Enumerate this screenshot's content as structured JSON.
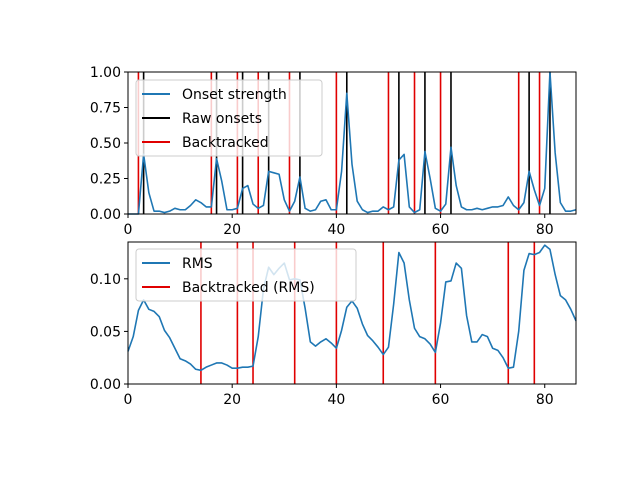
{
  "colors": {
    "series": "#1f77b4",
    "raw": "#000000",
    "backtracked": "#e00000",
    "axis": "#000000"
  },
  "chart_data": [
    {
      "type": "line",
      "xlim": [
        0,
        86
      ],
      "ylim": [
        0,
        1.0
      ],
      "xticks": [
        0,
        20,
        40,
        60,
        80
      ],
      "xtick_labels": [
        "0",
        "20",
        "40",
        "60",
        "80"
      ],
      "yticks": [
        0,
        0.25,
        0.5,
        0.75,
        1.0
      ],
      "ytick_labels": [
        "0.00",
        "0.25",
        "0.50",
        "0.75",
        "1.00"
      ],
      "legend": {
        "position": "upper-left",
        "entries": [
          "Onset strength",
          "Raw onsets",
          "Backtracked"
        ]
      },
      "series": [
        {
          "name": "Onset strength",
          "x_start": 0,
          "values": [
            0.0,
            0.0,
            0.0,
            0.42,
            0.15,
            0.02,
            0.02,
            0.01,
            0.02,
            0.04,
            0.03,
            0.03,
            0.06,
            0.1,
            0.08,
            0.05,
            0.05,
            0.39,
            0.23,
            0.03,
            0.03,
            0.04,
            0.18,
            0.2,
            0.07,
            0.04,
            0.06,
            0.3,
            0.29,
            0.28,
            0.1,
            0.02,
            0.09,
            0.26,
            0.04,
            0.02,
            0.03,
            0.09,
            0.1,
            0.03,
            0.03,
            0.3,
            0.85,
            0.35,
            0.09,
            0.03,
            0.01,
            0.02,
            0.02,
            0.05,
            0.03,
            0.05,
            0.38,
            0.42,
            0.05,
            0.01,
            0.03,
            0.44,
            0.25,
            0.04,
            0.02,
            0.07,
            0.47,
            0.2,
            0.05,
            0.03,
            0.03,
            0.04,
            0.03,
            0.04,
            0.05,
            0.05,
            0.06,
            0.12,
            0.06,
            0.03,
            0.08,
            0.3,
            0.17,
            0.06,
            0.18,
            1.0,
            0.43,
            0.08,
            0.02,
            0.02,
            0.03
          ]
        }
      ],
      "raw_onsets": [
        3,
        17,
        22,
        27,
        33,
        42,
        52,
        57,
        62,
        77,
        81
      ],
      "backtracked": [
        2,
        16,
        21,
        25,
        31,
        40,
        50,
        55,
        60,
        75,
        79
      ]
    },
    {
      "type": "line",
      "xlim": [
        0,
        86
      ],
      "ylim": [
        0,
        0.135
      ],
      "xticks": [
        0,
        20,
        40,
        60,
        80
      ],
      "xtick_labels": [
        "0",
        "20",
        "40",
        "60",
        "80"
      ],
      "yticks": [
        0,
        0.05,
        0.1
      ],
      "ytick_labels": [
        "0.00",
        "0.05",
        "0.10"
      ],
      "legend": {
        "position": "upper-left",
        "entries": [
          "RMS",
          "Backtracked (RMS)"
        ]
      },
      "series": [
        {
          "name": "RMS",
          "x_start": 0,
          "values": [
            0.031,
            0.045,
            0.07,
            0.08,
            0.071,
            0.069,
            0.064,
            0.051,
            0.044,
            0.034,
            0.024,
            0.022,
            0.019,
            0.014,
            0.013,
            0.016,
            0.018,
            0.02,
            0.02,
            0.018,
            0.015,
            0.015,
            0.016,
            0.016,
            0.017,
            0.045,
            0.09,
            0.111,
            0.104,
            0.11,
            0.115,
            0.099,
            0.1,
            0.099,
            0.072,
            0.04,
            0.036,
            0.04,
            0.043,
            0.039,
            0.034,
            0.051,
            0.073,
            0.079,
            0.072,
            0.057,
            0.046,
            0.041,
            0.035,
            0.028,
            0.035,
            0.076,
            0.125,
            0.115,
            0.08,
            0.053,
            0.045,
            0.043,
            0.038,
            0.03,
            0.058,
            0.097,
            0.098,
            0.115,
            0.11,
            0.065,
            0.04,
            0.04,
            0.047,
            0.045,
            0.034,
            0.032,
            0.025,
            0.015,
            0.016,
            0.05,
            0.108,
            0.124,
            0.123,
            0.125,
            0.132,
            0.128,
            0.104,
            0.084,
            0.08,
            0.071,
            0.06
          ]
        }
      ],
      "backtracked": [
        14,
        21,
        24,
        32,
        40,
        49,
        59,
        73,
        78
      ]
    }
  ]
}
